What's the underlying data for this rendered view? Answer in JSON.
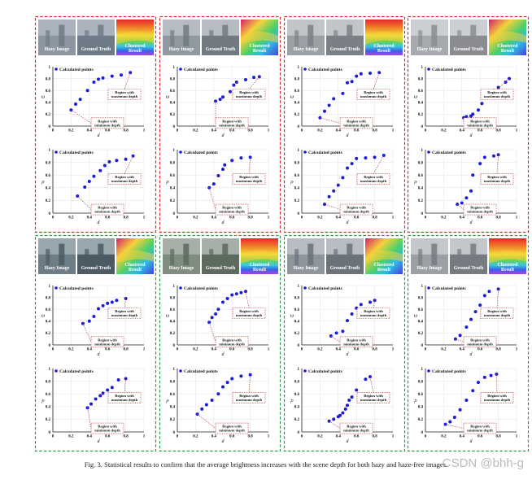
{
  "labels": {
    "thumb": [
      "Hazy Image",
      "Ground Truth",
      "Clustered\nResult"
    ],
    "legend": "Calculated points",
    "max_callout": [
      "Region with",
      "maximum depth"
    ],
    "min_callout": [
      "Region with",
      "minimum depth"
    ],
    "xlabel": "d",
    "top_ylabel": "ω",
    "bottom_ylabel": "ρ"
  },
  "panel_colors": {
    "hazy_border": "#d42a2a",
    "free_border": "#2a9a4a",
    "point": "#1c1cd8"
  },
  "caption": "Fig. 3.   Statistical results to confirm that the average brightness increases with the scene depth for both hazy and haze-free images.",
  "watermark": "CSDN @bhh-g",
  "chart_data": [
    {
      "type": "scatter",
      "xlim": [
        0,
        1
      ],
      "ylim": [
        0,
        1
      ],
      "x": [
        0.2,
        0.25,
        0.3,
        0.38,
        0.45,
        0.5,
        0.55,
        0.65,
        0.75,
        0.85
      ],
      "y": [
        0.27,
        0.37,
        0.45,
        0.6,
        0.74,
        0.79,
        0.81,
        0.84,
        0.86,
        0.9
      ]
    },
    {
      "type": "scatter",
      "xlim": [
        0,
        1
      ],
      "ylim": [
        0,
        1
      ],
      "x": [
        0.27,
        0.35,
        0.4,
        0.45,
        0.52,
        0.57,
        0.62,
        0.7,
        0.8,
        0.88
      ],
      "y": [
        0.27,
        0.41,
        0.5,
        0.58,
        0.67,
        0.75,
        0.81,
        0.83,
        0.85,
        0.9
      ]
    },
    {
      "type": "scatter",
      "xlim": [
        0,
        1
      ],
      "ylim": [
        0,
        1
      ],
      "x": [
        0.42,
        0.47,
        0.5,
        0.58,
        0.62,
        0.65,
        0.75,
        0.84,
        0.9
      ],
      "y": [
        0.42,
        0.45,
        0.49,
        0.58,
        0.69,
        0.74,
        0.78,
        0.82,
        0.83
      ]
    },
    {
      "type": "scatter",
      "xlim": [
        0,
        1
      ],
      "ylim": [
        0,
        1
      ],
      "x": [
        0.35,
        0.4,
        0.45,
        0.5,
        0.52,
        0.6,
        0.7,
        0.8
      ],
      "y": [
        0.4,
        0.46,
        0.59,
        0.69,
        0.76,
        0.83,
        0.87,
        0.88
      ]
    },
    {
      "type": "scatter",
      "xlim": [
        0,
        1
      ],
      "ylim": [
        0,
        1
      ],
      "x": [
        0.2,
        0.25,
        0.3,
        0.35,
        0.45,
        0.5,
        0.55,
        0.6,
        0.65,
        0.75,
        0.85
      ],
      "y": [
        0.14,
        0.25,
        0.35,
        0.46,
        0.55,
        0.73,
        0.75,
        0.84,
        0.88,
        0.89,
        0.9
      ]
    },
    {
      "type": "scatter",
      "xlim": [
        0,
        1
      ],
      "ylim": [
        0,
        1
      ],
      "x": [
        0.25,
        0.3,
        0.35,
        0.4,
        0.45,
        0.5,
        0.55,
        0.6,
        0.7,
        0.8,
        0.9
      ],
      "y": [
        0.14,
        0.26,
        0.35,
        0.44,
        0.56,
        0.71,
        0.78,
        0.86,
        0.87,
        0.88,
        0.91
      ]
    },
    {
      "type": "scatter",
      "xlim": [
        0,
        1
      ],
      "ylim": [
        0,
        1
      ],
      "x": [
        0.42,
        0.45,
        0.5,
        0.52,
        0.58,
        0.62,
        0.68,
        0.75,
        0.8,
        0.88,
        0.92
      ],
      "y": [
        0.14,
        0.16,
        0.17,
        0.2,
        0.27,
        0.38,
        0.48,
        0.6,
        0.65,
        0.74,
        0.8
      ]
    },
    {
      "type": "scatter",
      "xlim": [
        0,
        1
      ],
      "ylim": [
        0,
        1
      ],
      "x": [
        0.35,
        0.4,
        0.45,
        0.5,
        0.52,
        0.6,
        0.65,
        0.75,
        0.8
      ],
      "y": [
        0.14,
        0.16,
        0.24,
        0.35,
        0.6,
        0.78,
        0.88,
        0.9,
        0.92
      ]
    },
    {
      "type": "scatter",
      "xlim": [
        0,
        1
      ],
      "ylim": [
        0,
        1
      ],
      "x": [
        0.33,
        0.4,
        0.45,
        0.5,
        0.55,
        0.6,
        0.65,
        0.7,
        0.8
      ],
      "y": [
        0.36,
        0.4,
        0.48,
        0.61,
        0.66,
        0.7,
        0.72,
        0.75,
        0.78
      ]
    },
    {
      "type": "scatter",
      "xlim": [
        0,
        1
      ],
      "ylim": [
        0,
        1
      ],
      "x": [
        0.38,
        0.42,
        0.47,
        0.52,
        0.55,
        0.6,
        0.65,
        0.72,
        0.8
      ],
      "y": [
        0.38,
        0.44,
        0.52,
        0.57,
        0.61,
        0.66,
        0.7,
        0.82,
        0.84
      ]
    },
    {
      "type": "scatter",
      "xlim": [
        0,
        1
      ],
      "ylim": [
        0,
        1
      ],
      "x": [
        0.35,
        0.38,
        0.42,
        0.45,
        0.5,
        0.55,
        0.6,
        0.65,
        0.7,
        0.75
      ],
      "y": [
        0.38,
        0.46,
        0.52,
        0.6,
        0.72,
        0.78,
        0.84,
        0.86,
        0.88,
        0.9
      ]
    },
    {
      "type": "scatter",
      "xlim": [
        0,
        1
      ],
      "ylim": [
        0,
        1
      ],
      "x": [
        0.22,
        0.27,
        0.32,
        0.38,
        0.45,
        0.5,
        0.55,
        0.6,
        0.7,
        0.8
      ],
      "y": [
        0.28,
        0.36,
        0.43,
        0.5,
        0.6,
        0.71,
        0.78,
        0.84,
        0.88,
        0.9
      ]
    },
    {
      "type": "scatter",
      "xlim": [
        0,
        1
      ],
      "ylim": [
        0,
        1
      ],
      "x": [
        0.32,
        0.38,
        0.45,
        0.5,
        0.55,
        0.6,
        0.65,
        0.75,
        0.8
      ],
      "y": [
        0.15,
        0.2,
        0.23,
        0.41,
        0.52,
        0.62,
        0.68,
        0.72,
        0.75
      ]
    },
    {
      "type": "scatter",
      "xlim": [
        0,
        1
      ],
      "ylim": [
        0,
        1
      ],
      "x": [
        0.3,
        0.35,
        0.4,
        0.42,
        0.45,
        0.48,
        0.5,
        0.52,
        0.55,
        0.6,
        0.7,
        0.75
      ],
      "y": [
        0.17,
        0.2,
        0.24,
        0.26,
        0.3,
        0.36,
        0.42,
        0.5,
        0.55,
        0.66,
        0.83,
        0.87
      ]
    },
    {
      "type": "scatter",
      "xlim": [
        0,
        1
      ],
      "ylim": [
        0,
        1
      ],
      "x": [
        0.33,
        0.38,
        0.45,
        0.5,
        0.55,
        0.6,
        0.65,
        0.7,
        0.8
      ],
      "y": [
        0.1,
        0.16,
        0.3,
        0.43,
        0.56,
        0.67,
        0.83,
        0.9,
        0.94
      ]
    },
    {
      "type": "scatter",
      "xlim": [
        0,
        1
      ],
      "ylim": [
        0,
        1
      ],
      "x": [
        0.22,
        0.27,
        0.32,
        0.38,
        0.45,
        0.52,
        0.58,
        0.65,
        0.72,
        0.78
      ],
      "y": [
        0.12,
        0.16,
        0.23,
        0.35,
        0.5,
        0.65,
        0.78,
        0.86,
        0.89,
        0.91
      ]
    }
  ]
}
